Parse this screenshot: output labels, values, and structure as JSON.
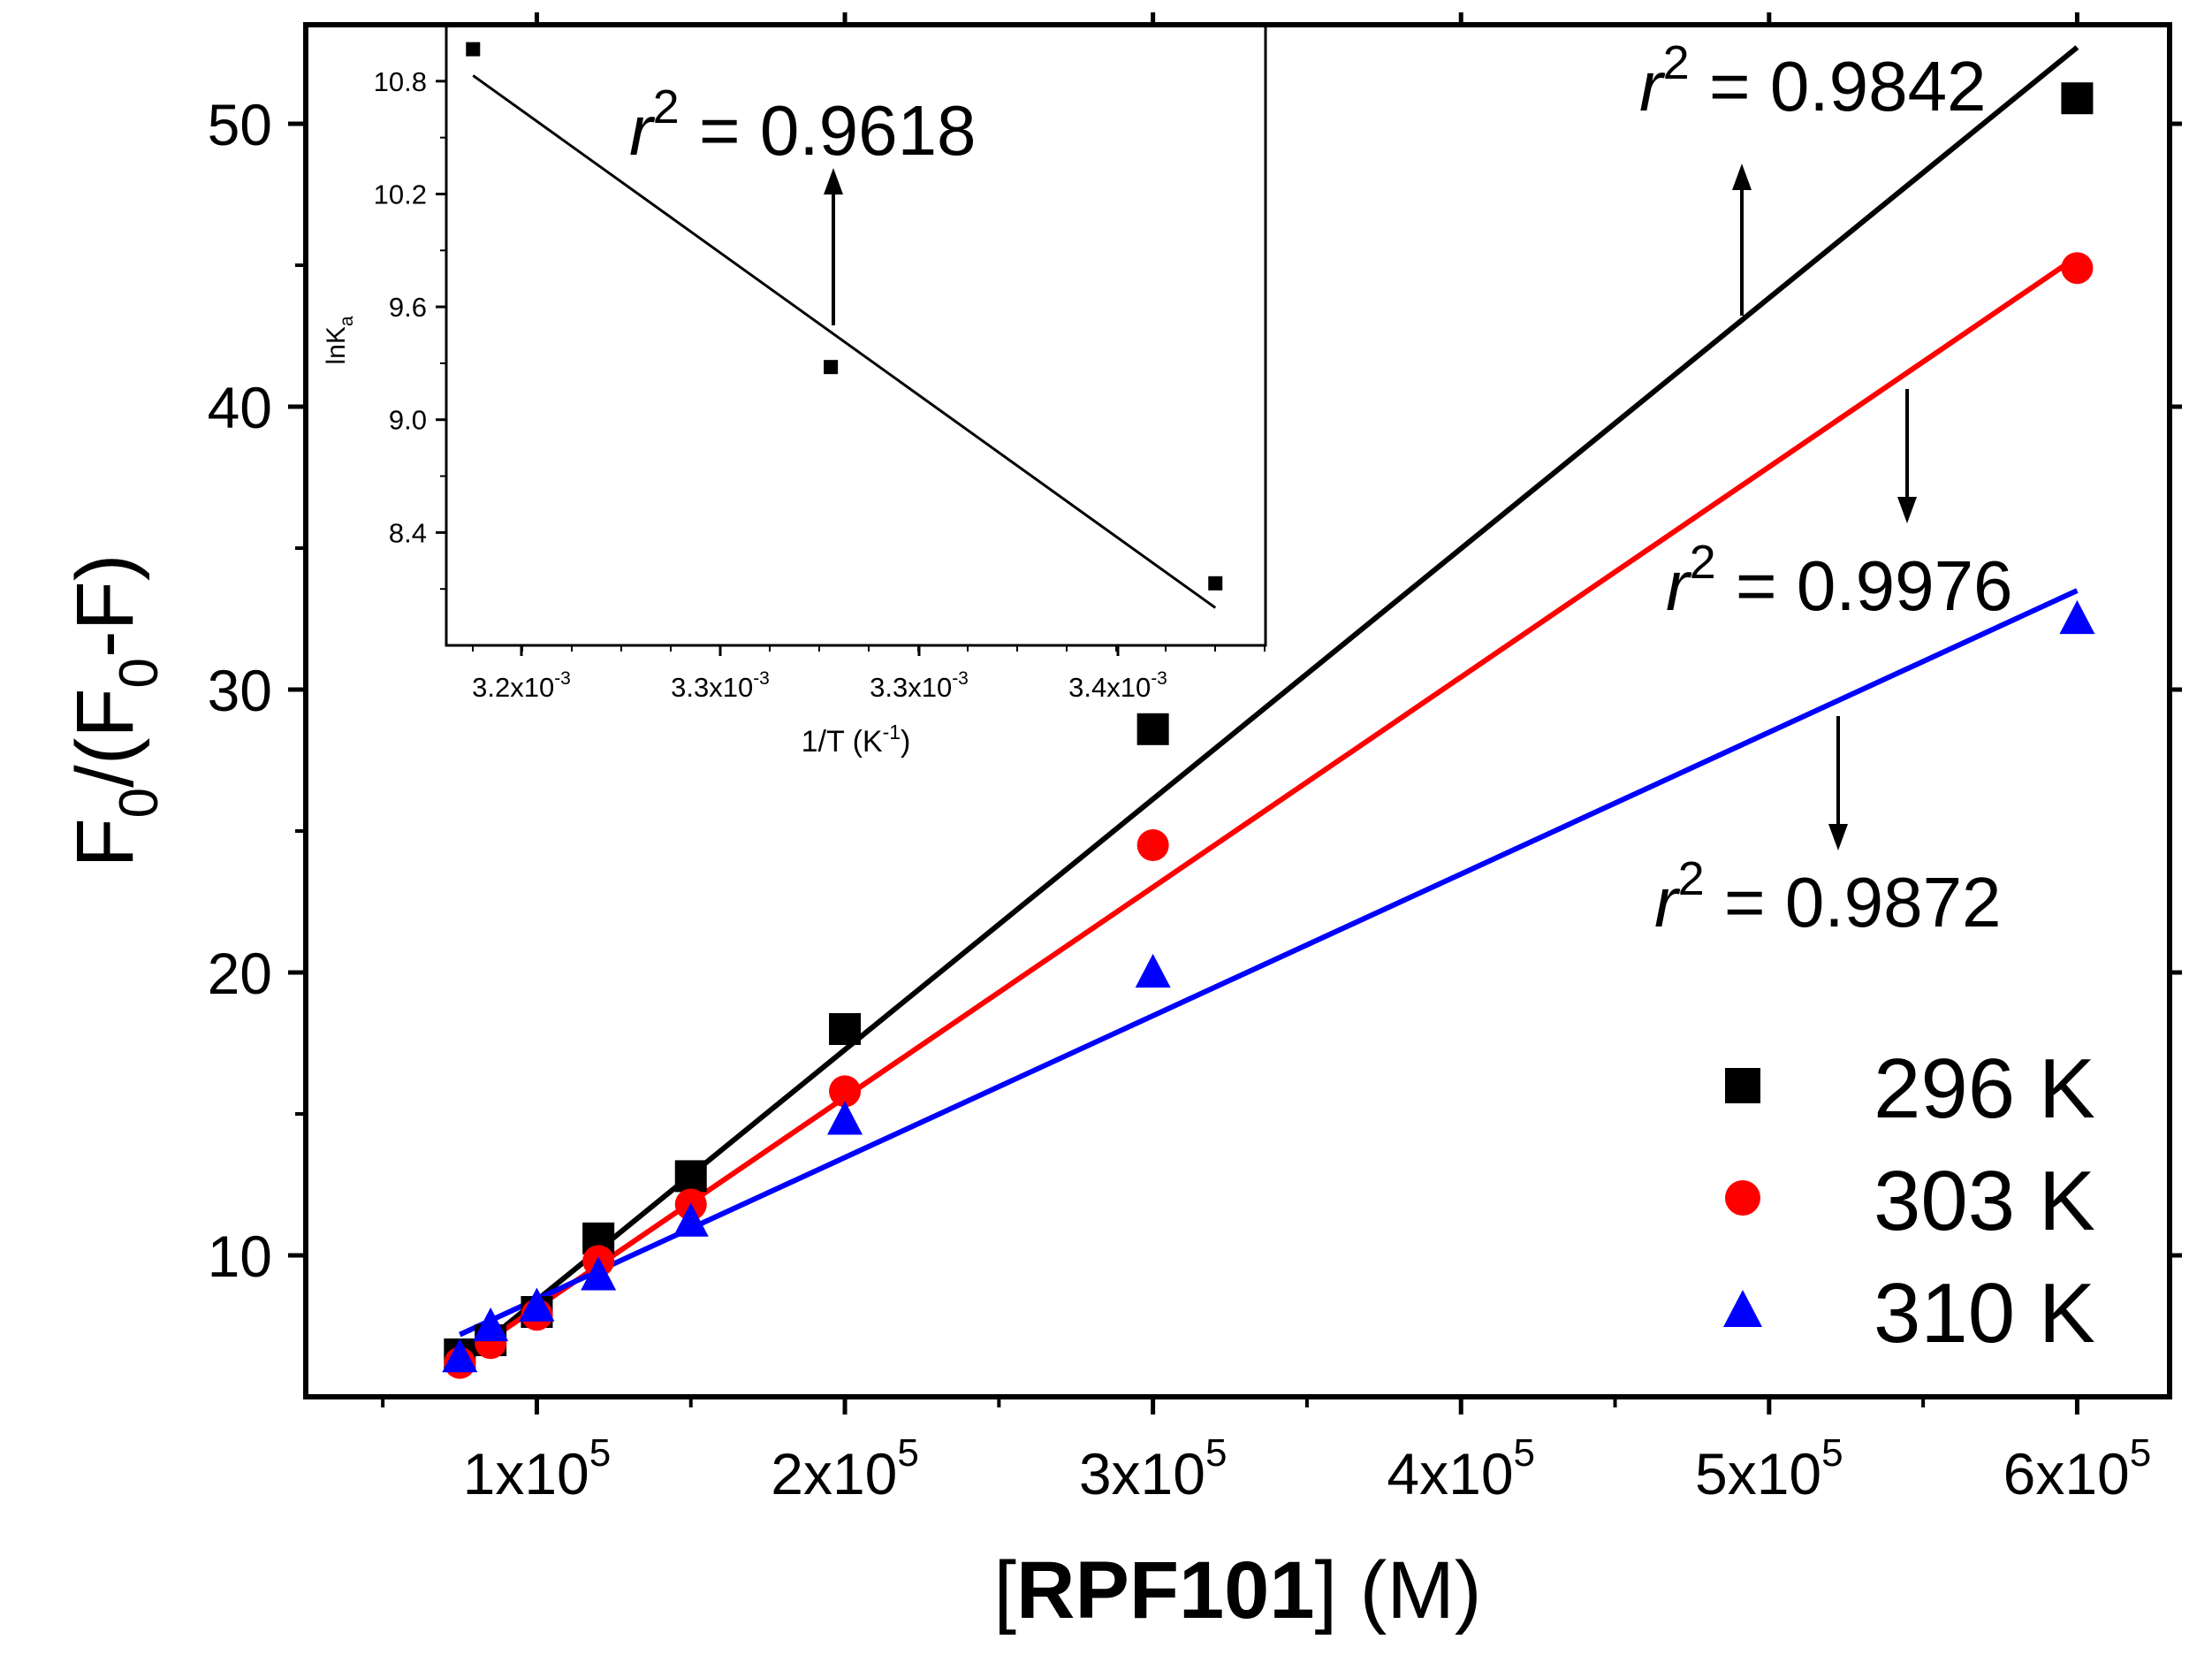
{
  "chart_data": [
    {
      "type": "scatter",
      "xlabel_bracket_open": "[",
      "xlabel_bold": "RPF101",
      "xlabel_rest": "] (M)",
      "ylabel_parts": [
        "F",
        "0",
        "/(F",
        "0",
        "-F)"
      ],
      "xlim": [
        25000,
        630000
      ],
      "ylim": [
        5,
        53.5
      ],
      "x_ticks": [
        {
          "value": 100000,
          "mantissa": "1x10",
          "exp": "5"
        },
        {
          "value": 200000,
          "mantissa": "2x10",
          "exp": "5"
        },
        {
          "value": 300000,
          "mantissa": "3x10",
          "exp": "5"
        },
        {
          "value": 400000,
          "mantissa": "4x10",
          "exp": "5"
        },
        {
          "value": 500000,
          "mantissa": "5x10",
          "exp": "5"
        },
        {
          "value": 600000,
          "mantissa": "6x10",
          "exp": "5"
        }
      ],
      "y_ticks": [
        {
          "value": 10,
          "label": "10"
        },
        {
          "value": 20,
          "label": "20"
        },
        {
          "value": 30,
          "label": "30"
        },
        {
          "value": 40,
          "label": "40"
        },
        {
          "value": 50,
          "label": "50"
        }
      ],
      "series": [
        {
          "name": "296 K",
          "color": "#000000",
          "marker": "square",
          "x": [
            75000,
            85000,
            100000,
            120000,
            150000,
            200000,
            300000,
            600000
          ],
          "y": [
            6.5,
            7.0,
            8.0,
            10.6,
            12.8,
            18.0,
            28.6,
            50.9
          ],
          "fit": [
            [
              75000,
              6.2
            ],
            [
              600000,
              52.7
            ]
          ],
          "r2_label": {
            "r": "r",
            "sup": "2",
            "text": " = 0.9842"
          }
        },
        {
          "name": "303 K",
          "color": "#ff0000",
          "marker": "circle",
          "x": [
            75000,
            85000,
            100000,
            120000,
            150000,
            200000,
            300000,
            600000
          ],
          "y": [
            6.2,
            6.9,
            7.9,
            9.8,
            11.8,
            15.8,
            24.5,
            44.9
          ],
          "fit": [
            [
              75000,
              6.3
            ],
            [
              600000,
              45.3
            ]
          ],
          "r2_label": {
            "r": "r",
            "sup": "2",
            "text": " = 0.9976"
          }
        },
        {
          "name": "310 K",
          "color": "#0000ff",
          "marker": "triangle",
          "x": [
            75000,
            85000,
            100000,
            120000,
            150000,
            200000,
            300000,
            600000
          ],
          "y": [
            6.4,
            7.5,
            8.2,
            9.3,
            11.2,
            14.8,
            20.0,
            32.5
          ],
          "fit": [
            [
              75000,
              7.2
            ],
            [
              600000,
              33.5
            ]
          ],
          "r2_label": {
            "r": "r",
            "sup": "2",
            "text": " = 0.9872"
          }
        }
      ],
      "legend": {
        "placement": "bottom-right",
        "entries": [
          "296 K",
          "303 K",
          "310 K"
        ]
      }
    },
    {
      "type": "scatter",
      "role": "inset",
      "xlabel_base": "1/T (K",
      "xlabel_sup": "-1",
      "xlabel_close": ")",
      "ylabel_base": "lnK",
      "ylabel_sub": "a",
      "x_ticks": [
        {
          "mantissa": "3.2x10",
          "exp": "-3"
        },
        {
          "mantissa": "3.3x10",
          "exp": "-3"
        },
        {
          "mantissa": "3.3x10",
          "exp": "-3"
        },
        {
          "mantissa": "3.4x10",
          "exp": "-3"
        }
      ],
      "xlim": [
        0.003175,
        0.00342
      ],
      "ylim": [
        7.8,
        11.1
      ],
      "y_ticks": [
        {
          "value": 8.4,
          "label": "8.4"
        },
        {
          "value": 9.0,
          "label": "9.0"
        },
        {
          "value": 9.6,
          "label": "9.6"
        },
        {
          "value": 10.2,
          "label": "10.2"
        },
        {
          "value": 10.8,
          "label": "10.8"
        }
      ],
      "points": {
        "x": [
          0.003183,
          0.00329,
          0.003405
        ],
        "y": [
          10.97,
          9.28,
          8.13
        ]
      },
      "fit": [
        [
          0.003183,
          10.83
        ],
        [
          0.003405,
          8.0
        ]
      ],
      "r2_label": {
        "r": "r",
        "sup": "2",
        "text": " = 0.9618"
      }
    }
  ]
}
